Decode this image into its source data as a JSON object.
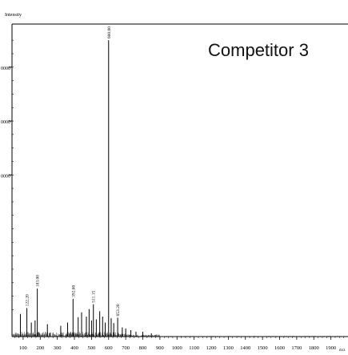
{
  "chart_data": {
    "type": "line",
    "title": "Competitor 3",
    "ylabel": "Intensity",
    "xlabel": "",
    "x_axis_unit": "m/z",
    "xlim": [
      35,
      2000
    ],
    "ylim": [
      0,
      58000
    ],
    "x_ticks": [
      100,
      200,
      300,
      400,
      500,
      600,
      700,
      800,
      900,
      1000,
      1100,
      1200,
      1300,
      1400,
      1500,
      1600,
      1700,
      1800,
      1900
    ],
    "y_ticks": [
      30000,
      40000,
      50000
    ],
    "y_tick_labels": [
      "0000",
      "0000",
      "0000"
    ],
    "grid": false,
    "legend": "none",
    "peaks": [
      {
        "x": 84,
        "y": 4200
      },
      {
        "x": 122,
        "y": 5300,
        "label": "122.20"
      },
      {
        "x": 148,
        "y": 2600
      },
      {
        "x": 170,
        "y": 3000
      },
      {
        "x": 183,
        "y": 8900,
        "label": "183.00"
      },
      {
        "x": 242,
        "y": 2300
      },
      {
        "x": 320,
        "y": 2000
      },
      {
        "x": 360,
        "y": 2600
      },
      {
        "x": 392,
        "y": 7000,
        "label": "392.00"
      },
      {
        "x": 422,
        "y": 3600
      },
      {
        "x": 442,
        "y": 4500
      },
      {
        "x": 470,
        "y": 3700
      },
      {
        "x": 486,
        "y": 5100
      },
      {
        "x": 500,
        "y": 3000
      },
      {
        "x": 511,
        "y": 6000,
        "label": "511.15"
      },
      {
        "x": 528,
        "y": 3200
      },
      {
        "x": 548,
        "y": 4700
      },
      {
        "x": 565,
        "y": 3700
      },
      {
        "x": 580,
        "y": 2600
      },
      {
        "x": 600,
        "y": 55000,
        "label": "600.00"
      },
      {
        "x": 615,
        "y": 3400
      },
      {
        "x": 630,
        "y": 2500
      },
      {
        "x": 653,
        "y": 3500,
        "label": "653.20"
      },
      {
        "x": 680,
        "y": 1700
      },
      {
        "x": 700,
        "y": 1500
      },
      {
        "x": 730,
        "y": 1200
      },
      {
        "x": 760,
        "y": 900
      },
      {
        "x": 800,
        "y": 900
      },
      {
        "x": 850,
        "y": 600
      }
    ]
  }
}
